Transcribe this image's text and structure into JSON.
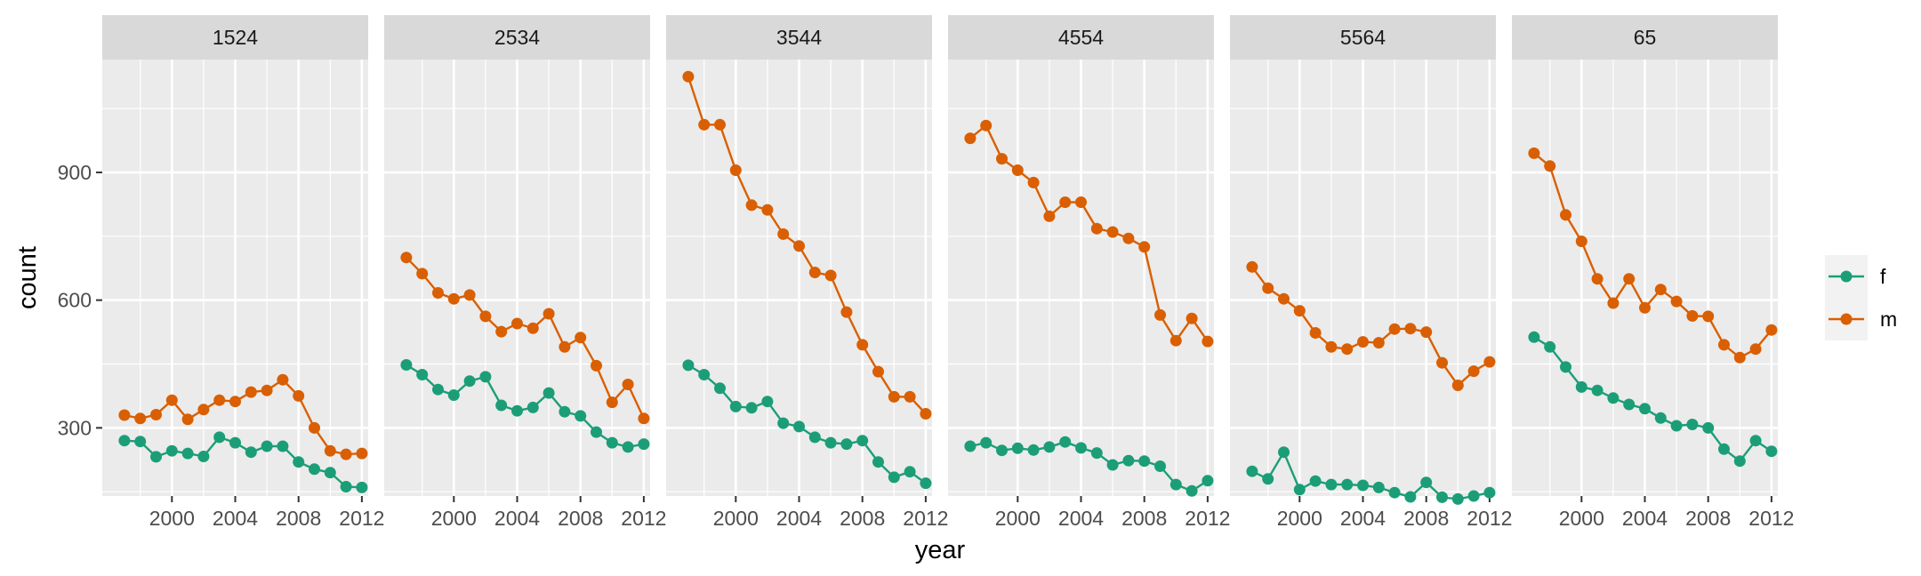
{
  "chart_data": {
    "type": "line",
    "xlabel": "year",
    "ylabel": "count",
    "x_ticks": [
      2000,
      2004,
      2008,
      2012
    ],
    "y_ticks": [
      300,
      600,
      900
    ],
    "xlim": [
      1995.6,
      2012.4
    ],
    "ylim": [
      140,
      1165
    ],
    "legend": {
      "placement": "right",
      "entries": [
        "f",
        "m"
      ]
    },
    "grid": true,
    "colors": {
      "f": "#1b9e77",
      "m": "#d95f02"
    },
    "years": [
      1997,
      1998,
      1999,
      2000,
      2001,
      2002,
      2003,
      2004,
      2005,
      2006,
      2007,
      2008,
      2009,
      2010,
      2011,
      2012
    ],
    "panels": [
      {
        "label": "1524",
        "series": [
          {
            "name": "f",
            "values": [
              270,
              268,
              232,
              246,
              240,
              233,
              278,
              265,
              243,
              257,
              257,
              220,
              203,
              195,
              162,
              160
            ]
          },
          {
            "name": "m",
            "values": [
              330,
              322,
              331,
              365,
              320,
              343,
              365,
              362,
              384,
              388,
              413,
              375,
              300,
              246,
              238,
              240
            ]
          }
        ]
      },
      {
        "label": "2534",
        "series": [
          {
            "name": "f",
            "values": [
              448,
              425,
              390,
              377,
              410,
              420,
              353,
              340,
              348,
              382,
              338,
              328,
              290,
              265,
              255,
              262
            ]
          },
          {
            "name": "m",
            "values": [
              700,
              662,
              617,
              603,
              612,
              562,
              526,
              545,
              534,
              568,
              490,
              512,
              446,
              360,
              402,
              322
            ]
          }
        ]
      },
      {
        "label": "3544",
        "series": [
          {
            "name": "f",
            "values": [
              447,
              425,
              393,
              350,
              347,
              362,
              311,
              303,
              278,
              265,
              262,
              270,
              220,
              184,
              197,
              170
            ]
          },
          {
            "name": "m",
            "values": [
              1125,
              1012,
              1012,
              905,
              823,
              812,
              755,
              727,
              665,
              658,
              572,
              495,
              432,
              373,
              373,
              333
            ]
          }
        ]
      },
      {
        "label": "4554",
        "series": [
          {
            "name": "f",
            "values": [
              257,
              265,
              247,
              252,
              248,
              255,
              267,
              253,
              241,
              213,
              223,
              222,
              210,
              167,
              152,
              176
            ]
          },
          {
            "name": "m",
            "values": [
              980,
              1010,
              932,
              905,
              876,
              797,
              830,
              830,
              768,
              760,
              745,
              725,
              565,
              505,
              557,
              503
            ]
          }
        ]
      },
      {
        "label": "5564",
        "series": [
          {
            "name": "f",
            "values": [
              198,
              180,
              243,
              155,
              175,
              167,
              167,
              165,
              160,
              148,
              138,
              172,
              137,
              133,
              140,
              148
            ]
          },
          {
            "name": "m",
            "values": [
              678,
              628,
              603,
              575,
              523,
              490,
              485,
              502,
              500,
              532,
              533,
              525,
              453,
              400,
              433,
              455
            ]
          }
        ]
      },
      {
        "label": "65",
        "series": [
          {
            "name": "f",
            "values": [
              513,
              490,
              443,
              396,
              388,
              370,
              355,
              345,
              323,
              305,
              308,
              300,
              250,
              222,
              270,
              245
            ]
          },
          {
            "name": "m",
            "values": [
              945,
              915,
              800,
              738,
              650,
              593,
              650,
              582,
              625,
              597,
              563,
              562,
              495,
              465,
              485,
              530
            ]
          }
        ]
      }
    ]
  }
}
